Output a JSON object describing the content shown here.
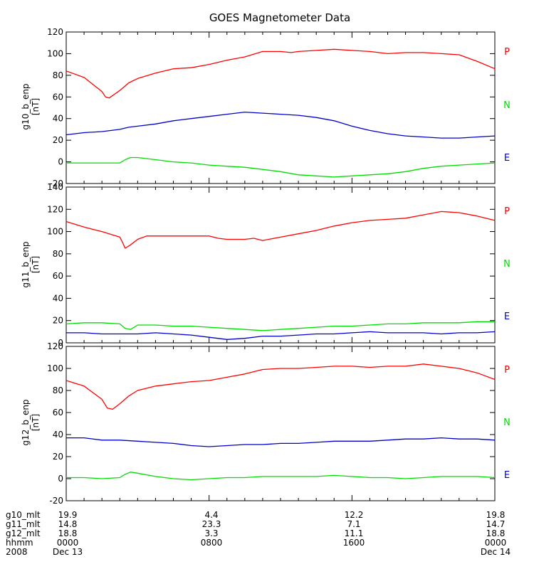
{
  "title": "GOES Magnetometer Data",
  "components": [
    {
      "label": "P",
      "color": "#ff0000"
    },
    {
      "label": "N",
      "color": "#00dd00"
    },
    {
      "label": "E",
      "color": "#0000cc"
    }
  ],
  "chart_data": [
    {
      "type": "line",
      "ylabel": "g10_b_enp",
      "yunit": "[nT]",
      "ylim": [
        -20,
        120
      ],
      "yticks": [
        -20,
        0,
        20,
        40,
        60,
        80,
        100,
        120
      ],
      "xlim": [
        0,
        24
      ],
      "series": [
        {
          "name": "P",
          "color": "#ff0000",
          "x": [
            0,
            1,
            2,
            2.2,
            2.4,
            3,
            3.5,
            4,
            5,
            6,
            7,
            8,
            9,
            10,
            11,
            12,
            12.6,
            13,
            14,
            15,
            16,
            17,
            18,
            19,
            20,
            21,
            22,
            23,
            24
          ],
          "y": [
            84,
            78,
            65,
            60,
            59,
            66,
            73,
            77,
            82,
            86,
            87,
            90,
            94,
            97,
            102,
            102,
            101,
            102,
            103,
            104,
            103,
            102,
            100,
            101,
            101,
            100,
            99,
            93,
            86
          ]
        },
        {
          "name": "N",
          "color": "#00dd00",
          "x": [
            0,
            1,
            2,
            3,
            3.3,
            3.6,
            4,
            5,
            6,
            7,
            8,
            9,
            10,
            11,
            12,
            13,
            14,
            15,
            16,
            17,
            18,
            19,
            20,
            21,
            22,
            23,
            24
          ],
          "y": [
            -1,
            -1,
            -1,
            -1,
            2,
            4,
            4,
            2,
            0,
            -1,
            -3,
            -4,
            -5,
            -7,
            -9,
            -12,
            -13,
            -14,
            -13,
            -12,
            -11,
            -9,
            -6,
            -4,
            -3,
            -2,
            -1
          ]
        },
        {
          "name": "E",
          "color": "#0000cc",
          "x": [
            0,
            1,
            2,
            3,
            3.5,
            4,
            5,
            6,
            7,
            8,
            9,
            10,
            11,
            12,
            13,
            14,
            15,
            16,
            17,
            18,
            19,
            20,
            21,
            22,
            23,
            24
          ],
          "y": [
            25,
            27,
            28,
            30,
            32,
            33,
            35,
            38,
            40,
            42,
            44,
            46,
            45,
            44,
            43,
            41,
            38,
            33,
            29,
            26,
            24,
            23,
            22,
            22,
            23,
            24
          ]
        }
      ]
    },
    {
      "type": "line",
      "ylabel": "g11_b_enp",
      "yunit": "[nT]",
      "ylim": [
        0,
        140
      ],
      "yticks": [
        0,
        20,
        40,
        60,
        80,
        100,
        120,
        140
      ],
      "xlim": [
        0,
        24
      ],
      "series": [
        {
          "name": "P",
          "color": "#ff0000",
          "x": [
            0,
            1,
            2,
            3,
            3.1,
            3.3,
            3.6,
            4,
            4.5,
            5,
            6,
            7,
            8,
            8.5,
            9,
            10,
            10.5,
            11,
            12,
            13,
            14,
            15,
            16,
            17,
            18,
            19,
            20,
            21,
            22,
            23,
            24
          ],
          "y": [
            109,
            104,
            100,
            95,
            92,
            85,
            88,
            93,
            96,
            96,
            96,
            96,
            96,
            94,
            93,
            93,
            94,
            92,
            95,
            98,
            101,
            105,
            108,
            110,
            111,
            112,
            115,
            118,
            117,
            114,
            110
          ]
        },
        {
          "name": "N",
          "color": "#00dd00",
          "x": [
            0,
            1,
            2,
            3,
            3.3,
            3.6,
            4,
            5,
            6,
            7,
            8,
            9,
            10,
            11,
            12,
            13,
            14,
            15,
            16,
            17,
            18,
            19,
            20,
            21,
            22,
            23,
            24
          ],
          "y": [
            17,
            18,
            18,
            17,
            13,
            12,
            16,
            16,
            15,
            15,
            14,
            13,
            12,
            11,
            12,
            13,
            14,
            15,
            15,
            16,
            17,
            17,
            18,
            18,
            18,
            19,
            19
          ]
        },
        {
          "name": "E",
          "color": "#0000cc",
          "x": [
            0,
            1,
            2,
            3,
            4,
            5,
            6,
            7,
            8,
            9,
            10,
            11,
            12,
            13,
            14,
            15,
            16,
            17,
            18,
            19,
            20,
            21,
            22,
            23,
            24
          ],
          "y": [
            9,
            9,
            8,
            8,
            8,
            9,
            8,
            7,
            5,
            3,
            4,
            6,
            6,
            7,
            8,
            8,
            9,
            10,
            9,
            9,
            9,
            8,
            9,
            9,
            10
          ]
        }
      ]
    },
    {
      "type": "line",
      "ylabel": "g12_b_enp",
      "yunit": "[nT]",
      "ylim": [
        -20,
        120
      ],
      "yticks": [
        -20,
        0,
        20,
        40,
        60,
        80,
        100,
        120
      ],
      "xlim": [
        0,
        24
      ],
      "series": [
        {
          "name": "P",
          "color": "#ff0000",
          "x": [
            0,
            1,
            2,
            2.3,
            2.6,
            3,
            3.5,
            4,
            5,
            6,
            7,
            8,
            9,
            10,
            11,
            12,
            13,
            14,
            15,
            16,
            17,
            18,
            19,
            20,
            21,
            22,
            23,
            24
          ],
          "y": [
            89,
            84,
            72,
            64,
            63,
            68,
            75,
            80,
            84,
            86,
            88,
            89,
            92,
            95,
            99,
            100,
            100,
            101,
            102,
            102,
            101,
            102,
            102,
            104,
            102,
            100,
            96,
            90
          ]
        },
        {
          "name": "N",
          "color": "#00dd00",
          "x": [
            0,
            1,
            2,
            3,
            3.3,
            3.6,
            4,
            5,
            6,
            7,
            8,
            9,
            10,
            11,
            12,
            13,
            14,
            15,
            16,
            17,
            18,
            19,
            20,
            21,
            22,
            23,
            24
          ],
          "y": [
            1,
            1,
            0,
            1,
            4,
            6,
            5,
            2,
            0,
            -1,
            0,
            1,
            1,
            2,
            2,
            2,
            2,
            3,
            2,
            1,
            1,
            0,
            1,
            2,
            2,
            2,
            1
          ]
        },
        {
          "name": "E",
          "color": "#0000cc",
          "x": [
            0,
            1,
            2,
            3,
            4,
            5,
            6,
            7,
            8,
            9,
            10,
            11,
            12,
            13,
            14,
            15,
            16,
            17,
            18,
            19,
            20,
            21,
            22,
            23,
            24
          ],
          "y": [
            37,
            37,
            35,
            35,
            34,
            33,
            32,
            30,
            29,
            30,
            31,
            31,
            32,
            32,
            33,
            34,
            34,
            34,
            35,
            36,
            36,
            37,
            36,
            36,
            35
          ]
        }
      ]
    }
  ],
  "footer": {
    "rows": [
      {
        "label": "g10_mlt",
        "values": [
          "19.9",
          "4.4",
          "12.2",
          "19.8"
        ]
      },
      {
        "label": "g11_mlt",
        "values": [
          "14.8",
          "23.3",
          "7.1",
          "14.7"
        ]
      },
      {
        "label": "g12_mlt",
        "values": [
          "18.8",
          "3.3",
          "11.1",
          "18.8"
        ]
      },
      {
        "label": "hhmm",
        "values": [
          "0000",
          "0800",
          "1600",
          "0000"
        ]
      },
      {
        "label": "2008",
        "values": [
          "Dec 13",
          "",
          "",
          "Dec 14"
        ]
      }
    ],
    "tick_hours": [
      0,
      8,
      16,
      24
    ]
  }
}
